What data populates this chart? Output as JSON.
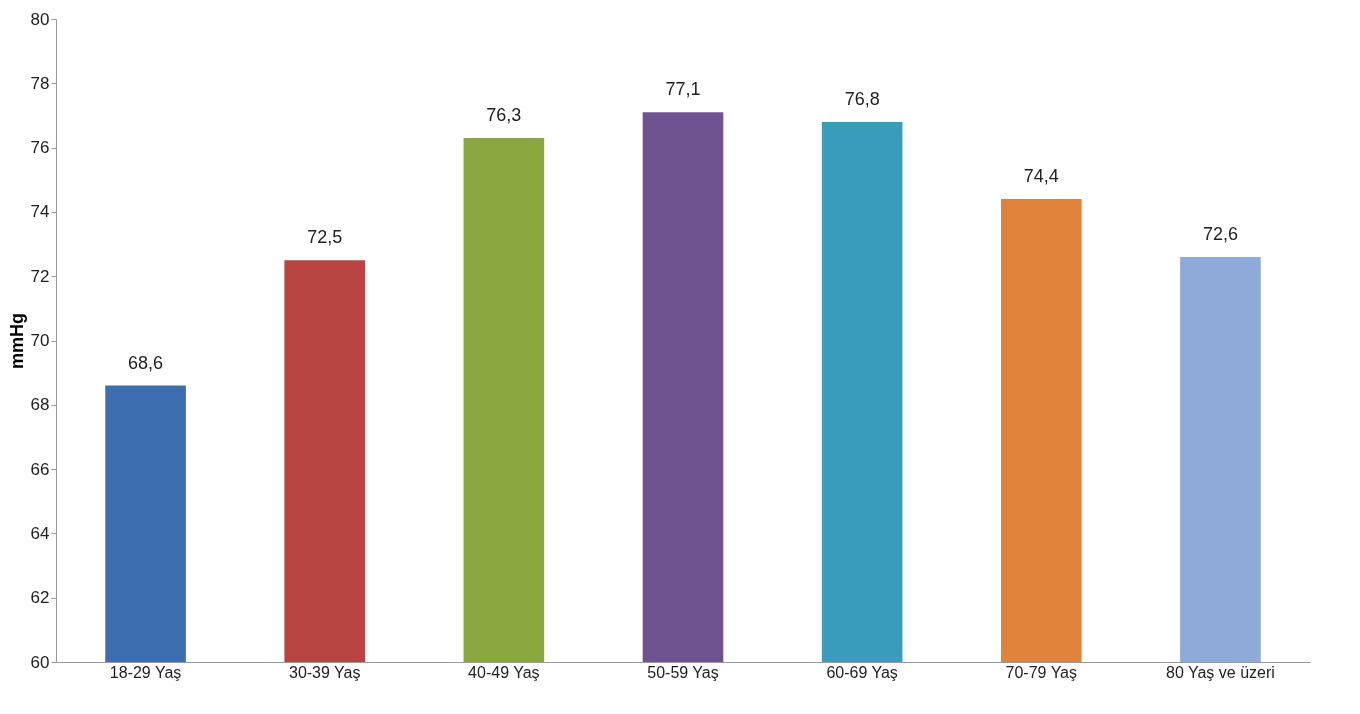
{
  "chart_data": {
    "type": "bar",
    "ylabel": "mmHg",
    "categories": [
      "18-29 Yaş",
      "30-39 Yaş",
      "40-49 Yaş",
      "50-59 Yaş",
      "60-69 Yaş",
      "70-79 Yaş",
      "80 Yaş ve üzeri"
    ],
    "values": [
      68.6,
      72.5,
      76.3,
      77.1,
      76.8,
      74.4,
      72.6
    ],
    "value_labels": [
      "68,6",
      "72,5",
      "76,3",
      "77,1",
      "76,8",
      "74,4",
      "72,6"
    ],
    "colors": [
      "#3d6eb0",
      "#b84541",
      "#8aa83f",
      "#6e5390",
      "#3a9cbb",
      "#e0823a",
      "#8eaad8"
    ],
    "ylim": [
      60,
      80
    ],
    "yticks": [
      60,
      62,
      64,
      66,
      68,
      70,
      72,
      74,
      76,
      78,
      80
    ],
    "grid": false
  }
}
